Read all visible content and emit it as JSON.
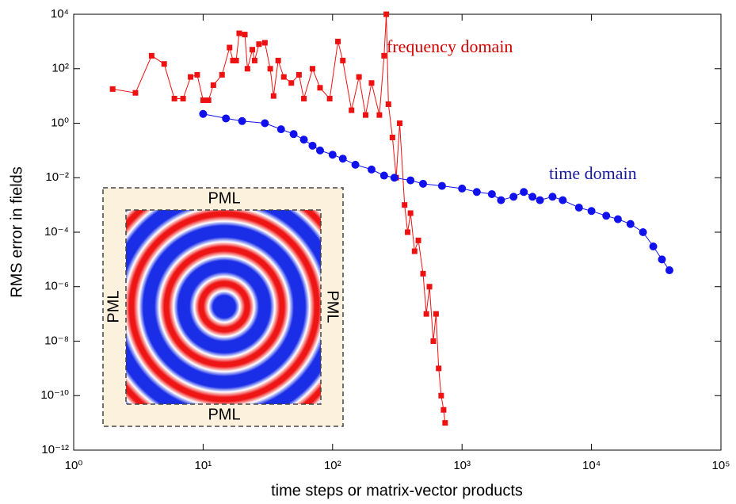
{
  "chart_data": {
    "type": "line",
    "xlabel": "time steps or matrix-vector products",
    "ylabel": "RMS error in fields",
    "log_x": true,
    "log_y": true,
    "xlim": [
      1,
      100000
    ],
    "ylim": [
      1e-12,
      10000
    ],
    "xticks": [
      {
        "value": 1,
        "label": "10⁰"
      },
      {
        "value": 10,
        "label": "10¹"
      },
      {
        "value": 100,
        "label": "10²"
      },
      {
        "value": 1000,
        "label": "10³"
      },
      {
        "value": 10000,
        "label": "10⁴"
      },
      {
        "value": 100000,
        "label": "10⁵"
      }
    ],
    "yticks": [
      {
        "value": 1e-12,
        "label": "10⁻¹²"
      },
      {
        "value": 1e-10,
        "label": "10⁻¹⁰"
      },
      {
        "value": 1e-08,
        "label": "10⁻⁸"
      },
      {
        "value": 1e-06,
        "label": "10⁻⁶"
      },
      {
        "value": 0.0001,
        "label": "10⁻⁴"
      },
      {
        "value": 0.01,
        "label": "10⁻²"
      },
      {
        "value": 1,
        "label": "10⁰"
      },
      {
        "value": 100,
        "label": "10²"
      },
      {
        "value": 10000,
        "label": "10⁴"
      }
    ],
    "annotations": [
      {
        "text": "frequency domain",
        "color": "#d40000"
      },
      {
        "text": "time domain",
        "color": "#1a1aa0"
      }
    ],
    "series": [
      {
        "name": "frequency domain",
        "color": "#ee1111",
        "marker": "square",
        "x": [
          2,
          3,
          4,
          5,
          6,
          7,
          8,
          9,
          10,
          11,
          12,
          14,
          16,
          17,
          18,
          19,
          21,
          22,
          24,
          25,
          27,
          30,
          33,
          35,
          38,
          42,
          48,
          55,
          60,
          70,
          80,
          95,
          110,
          120,
          140,
          160,
          180,
          200,
          230,
          250,
          260,
          270,
          290,
          310,
          330,
          360,
          380,
          400,
          430,
          460,
          500,
          530,
          560,
          600,
          630,
          660,
          690,
          720,
          740
        ],
        "values": [
          18,
          13,
          300,
          150,
          8,
          8,
          50,
          60,
          7,
          7,
          25,
          60,
          600,
          200,
          200,
          2000,
          1800,
          100,
          500,
          200,
          800,
          900,
          100,
          10,
          200,
          50,
          30,
          60,
          8,
          100,
          20,
          8,
          1000,
          200,
          3,
          50,
          2,
          30,
          2,
          300,
          10000,
          5,
          0.3,
          0.01,
          1,
          0.001,
          0.0001,
          0.0005,
          2e-05,
          5e-05,
          3e-06,
          1e-07,
          1e-06,
          1e-08,
          1e-07,
          1e-09,
          1e-10,
          3e-11,
          1e-11
        ]
      },
      {
        "name": "time domain",
        "color": "#1111ee",
        "marker": "circle",
        "x": [
          10,
          15,
          20,
          30,
          40,
          50,
          60,
          70,
          80,
          100,
          120,
          150,
          200,
          250,
          300,
          400,
          500,
          700,
          1000,
          1300,
          1700,
          2000,
          2500,
          3000,
          3500,
          4000,
          5000,
          6000,
          8000,
          10000,
          13000,
          16000,
          20000,
          25000,
          30000,
          35000,
          40000
        ],
        "values": [
          2.2,
          1.5,
          1.2,
          1,
          0.6,
          0.4,
          0.25,
          0.15,
          0.1,
          0.07,
          0.05,
          0.03,
          0.02,
          0.012,
          0.01,
          0.008,
          0.006,
          0.005,
          0.004,
          0.003,
          0.0025,
          0.0015,
          0.002,
          0.003,
          0.002,
          0.0015,
          0.002,
          0.0015,
          0.0008,
          0.0006,
          0.0004,
          0.0003,
          0.0002,
          0.0001,
          3e-05,
          1e-05,
          4e-06
        ]
      }
    ]
  },
  "inset": {
    "labels": [
      "PML",
      "PML",
      "PML",
      "PML"
    ]
  }
}
